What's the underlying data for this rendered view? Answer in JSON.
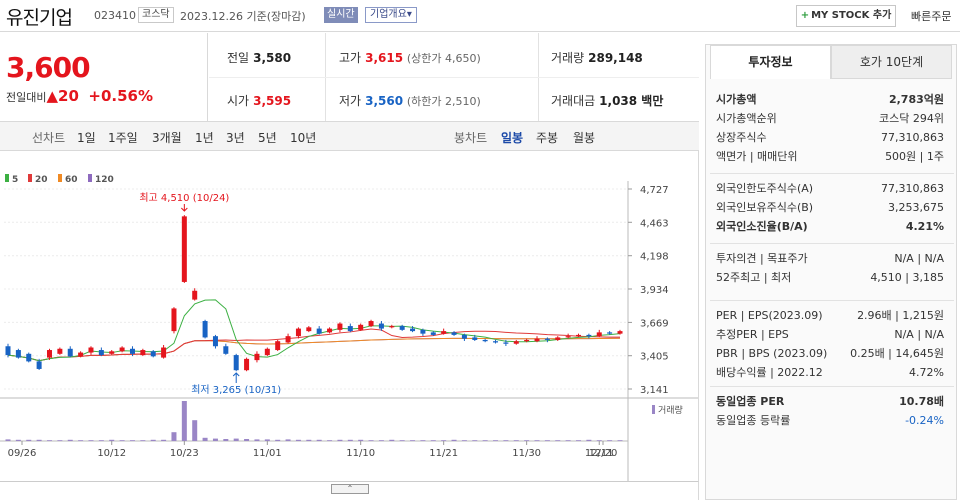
{
  "header": {
    "stock_name": "유진기업",
    "code": "023410",
    "market": "코스닥",
    "date_basis": "2023.12.26 기준(장마감)",
    "live_label": "실시간",
    "corp_info_label": "기업개요",
    "corp_info_arrow": "▾",
    "my_stock_label": "MY STOCK 추가",
    "my_stock_plus": "+",
    "quick_order_label": "빠른주문"
  },
  "current": {
    "price": "3,600",
    "change_label": "전일대비",
    "change_arrow": "▲",
    "change_value": "20",
    "change_pct": "+0.56%"
  },
  "quote": {
    "prev_close": {
      "label": "전일",
      "value": "3,580"
    },
    "high": {
      "label": "고가",
      "value": "3,615",
      "limit_label": "(상한가 4,650)"
    },
    "volume": {
      "label": "거래량",
      "value": "289,148"
    },
    "open": {
      "label": "시가",
      "value": "3,595"
    },
    "low": {
      "label": "저가",
      "value": "3,560",
      "limit_label": "(하한가 2,510)"
    },
    "amount": {
      "label": "거래대금",
      "value": "1,038 백만"
    }
  },
  "line_tabs": {
    "label": "선차트",
    "items": [
      "1일",
      "1주일",
      "3개월",
      "1년",
      "3년",
      "5년",
      "10년"
    ]
  },
  "candle_tabs": {
    "label": "봉차트",
    "items": [
      "일봉",
      "주봉",
      "월봉"
    ],
    "selected": "일봉"
  },
  "legend": [
    {
      "label": "5",
      "color": "#3cb043"
    },
    {
      "label": "20",
      "color": "#e03a3a"
    },
    {
      "label": "60",
      "color": "#f08a24"
    },
    {
      "label": "120",
      "color": "#8e6bbf"
    }
  ],
  "chart_data": {
    "type": "candlestick",
    "price_axis": {
      "ticks": [
        4727,
        4463,
        4198,
        3934,
        3669,
        3405,
        3141
      ],
      "tick_labels": [
        "4,727",
        "4,463",
        "4,198",
        "3,934",
        "3,669",
        "3,405",
        "3,141"
      ],
      "range": [
        3141,
        4727
      ]
    },
    "x_tick_labels": [
      "09/26",
      "10/12",
      "10/23",
      "11/01",
      "11/10",
      "11/21",
      "11/30",
      "12/11",
      "12/20"
    ],
    "annotations": {
      "high": "최고 4,510 (10/24)",
      "low": "최저 3,265 (10/31)",
      "high_value": 4510,
      "low_value": 3265
    },
    "volume_label": "거래량",
    "candles": [
      [
        3480,
        3410
      ],
      [
        3450,
        3390
      ],
      [
        3420,
        3360
      ],
      [
        3360,
        3300
      ],
      [
        3390,
        3450
      ],
      [
        3420,
        3460
      ],
      [
        3460,
        3400
      ],
      [
        3400,
        3430
      ],
      [
        3430,
        3470
      ],
      [
        3450,
        3410
      ],
      [
        3420,
        3440
      ],
      [
        3440,
        3470
      ],
      [
        3460,
        3420
      ],
      [
        3410,
        3450
      ],
      [
        3440,
        3400
      ],
      [
        3390,
        3470
      ],
      [
        3600,
        3780
      ],
      [
        3990,
        4510
      ],
      [
        3850,
        3920
      ],
      [
        3680,
        3550
      ],
      [
        3560,
        3480
      ],
      [
        3480,
        3420
      ],
      [
        3410,
        3290
      ],
      [
        3290,
        3380
      ],
      [
        3370,
        3420
      ],
      [
        3410,
        3460
      ],
      [
        3450,
        3520
      ],
      [
        3510,
        3560
      ],
      [
        3560,
        3620
      ],
      [
        3600,
        3630
      ],
      [
        3620,
        3580
      ],
      [
        3590,
        3620
      ],
      [
        3610,
        3660
      ],
      [
        3640,
        3600
      ],
      [
        3610,
        3650
      ],
      [
        3640,
        3680
      ],
      [
        3660,
        3620
      ],
      [
        3630,
        3640
      ],
      [
        3640,
        3610
      ],
      [
        3620,
        3600
      ],
      [
        3610,
        3580
      ],
      [
        3590,
        3570
      ],
      [
        3580,
        3600
      ],
      [
        3590,
        3570
      ],
      [
        3570,
        3540
      ],
      [
        3550,
        3530
      ],
      [
        3530,
        3520
      ],
      [
        3520,
        3510
      ],
      [
        3510,
        3500
      ],
      [
        3500,
        3520
      ],
      [
        3520,
        3530
      ],
      [
        3520,
        3540
      ],
      [
        3540,
        3530
      ],
      [
        3530,
        3550
      ],
      [
        3550,
        3560
      ],
      [
        3560,
        3570
      ],
      [
        3570,
        3560
      ],
      [
        3560,
        3590
      ],
      [
        3590,
        3580
      ],
      [
        3580,
        3600
      ]
    ],
    "volumes": [
      4,
      3,
      3,
      3,
      2,
      2,
      3,
      2,
      2,
      2,
      3,
      2,
      2,
      2,
      3,
      3,
      22,
      100,
      52,
      8,
      6,
      5,
      6,
      5,
      4,
      4,
      3,
      4,
      3,
      3,
      3,
      2,
      3,
      3,
      3,
      2,
      2,
      3,
      2,
      2,
      2,
      2,
      2,
      3,
      2,
      2,
      2,
      2,
      2,
      2,
      2,
      2,
      2,
      2,
      2,
      2,
      3,
      2,
      2,
      2
    ]
  },
  "sidebar": {
    "tab_invest": "투자정보",
    "tab_hoga": "호가 10단계",
    "rows1": [
      {
        "label": "시가총액",
        "value": "2,783억원",
        "bold": true
      },
      {
        "label": "시가총액순위",
        "value": "코스닥 294위"
      },
      {
        "label": "상장주식수",
        "value": "77,310,863"
      },
      {
        "label": "액면가 | 매매단위",
        "value": "500원 | 1주"
      }
    ],
    "rows2": [
      {
        "label": "외국인한도주식수(A)",
        "value": "77,310,863"
      },
      {
        "label": "외국인보유주식수(B)",
        "value": "3,253,675"
      },
      {
        "label": "외국인소진율(B/A)",
        "value": "4.21%",
        "bold": true
      }
    ],
    "rows3": [
      {
        "label": "투자의견 | 목표주가",
        "value": "N/A | N/A"
      },
      {
        "label": "52주최고 | 최저",
        "value": "4,510 | 3,185"
      }
    ],
    "rows4": [
      {
        "label": "PER | EPS(2023.09)",
        "value": "2.96배 | 1,215원"
      },
      {
        "label": "추정PER | EPS",
        "value": "N/A | N/A"
      },
      {
        "label": "PBR | BPS (2023.09)",
        "value": "0.25배 | 14,645원"
      },
      {
        "label": "배당수익률 | 2022.12",
        "value": "4.72%"
      }
    ],
    "rows5": [
      {
        "label": "동일업종 PER",
        "value": "10.78배",
        "bold": true
      },
      {
        "label": "동일업종 등락률",
        "value": "-0.24%",
        "blue": true
      }
    ]
  }
}
